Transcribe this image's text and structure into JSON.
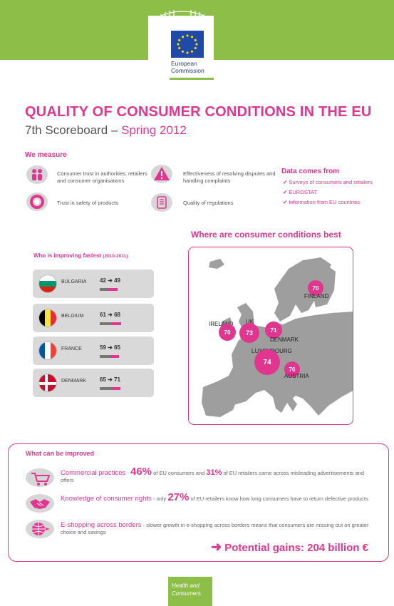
{
  "header": {
    "logo_line1": "European",
    "logo_line2": "Commission",
    "title": "QUALITY OF CONSUMER CONDITIONS IN THE EU",
    "subtitle_main": "7th Scoreboard – ",
    "subtitle_accent": "Spring 2012"
  },
  "measure": {
    "heading": "We measure",
    "items": [
      {
        "icon": "people-icon",
        "text": "Consumer trust in authorities, retailers and consumer organisations"
      },
      {
        "icon": "warning-icon",
        "text": "Effectiveness of resolving disputes and handling complaints"
      },
      {
        "icon": "lifebuoy-icon",
        "text": "Trust in safety of products"
      },
      {
        "icon": "scroll-icon",
        "text": "Quality of regulations"
      }
    ]
  },
  "data_source": {
    "heading": "Data comes from",
    "items": [
      "Surveys of consumers and retailers",
      "EUROSTAT",
      "Information from EU countries"
    ]
  },
  "improving": {
    "heading": "Who is improving fastest",
    "period": "(2010-2011)",
    "countries": [
      {
        "name": "BULGARIA",
        "from": "42",
        "to": "49",
        "from_val": 42,
        "to_val": 49
      },
      {
        "name": "BELGIUM",
        "from": "61",
        "to": "68",
        "from_val": 61,
        "to_val": 68
      },
      {
        "name": "FRANCE",
        "from": "59",
        "to": "65",
        "from_val": 59,
        "to_val": 65
      },
      {
        "name": "DENMARK",
        "from": "65",
        "to": "71",
        "from_val": 65,
        "to_val": 71
      }
    ]
  },
  "map": {
    "heading": "Where are consumer conditions best",
    "points": [
      {
        "name": "FINLAND",
        "value": "70"
      },
      {
        "name": "IRELAND",
        "value": "70"
      },
      {
        "name": "UK",
        "value": "73"
      },
      {
        "name": "DENMARK",
        "value": "71"
      },
      {
        "name": "LUXEMBOURG",
        "value": "74"
      },
      {
        "name": "AUSTRIA",
        "value": "70"
      }
    ]
  },
  "improve": {
    "heading": "What can be improved",
    "items": [
      {
        "icon": "cart-icon",
        "lead": "Commercial practices",
        "text1": " - ",
        "big1": "46%",
        "text2": " of EU consumers and ",
        "big2": "31%",
        "text3": " of EU retailers came across misleading advertisements and offers"
      },
      {
        "icon": "handshake-icon",
        "lead": "Knowledge of consumer rights",
        "text1": " - only ",
        "big1": "27%",
        "text2": " of EU retailers know how long consumers have to return defective products"
      },
      {
        "icon": "globe-icon",
        "lead": "E-shopping across borders",
        "text1": " - slower growth in e-shopping across borders means that consumers are missing out on greater choice and savings"
      }
    ],
    "gains": "Potential gains: 204 billion €"
  },
  "footer": {
    "line1": "Health and",
    "line2": "Consumers"
  },
  "colors": {
    "accent": "#e0368f",
    "green": "#8dbf48",
    "eu_blue": "#1f4aa8"
  }
}
